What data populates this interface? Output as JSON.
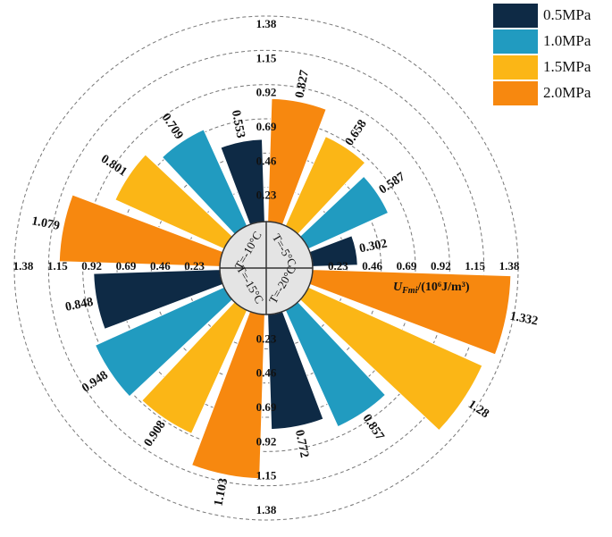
{
  "chart_data": {
    "type": "polar_bar",
    "categories": [
      "T=-5°C",
      "T=-10°C",
      "T=-15°C",
      "T=-20°C"
    ],
    "series": [
      {
        "name": "0.5MPa",
        "color": "#0e2a45",
        "values": [
          0.302,
          0.553,
          0.848,
          0.772
        ]
      },
      {
        "name": "1.0MPa",
        "color": "#219bc0",
        "values": [
          0.587,
          0.709,
          0.948,
          0.857
        ]
      },
      {
        "name": "1.5MPa",
        "color": "#fbb616",
        "values": [
          0.658,
          0.801,
          0.908,
          1.28
        ]
      },
      {
        "name": "2.0MPa",
        "color": "#f7880f",
        "values": [
          0.827,
          1.079,
          1.103,
          1.332
        ]
      }
    ],
    "ylim": [
      0,
      1.38
    ],
    "yticks": [
      0.23,
      0.46,
      0.69,
      0.92,
      1.15,
      1.38
    ],
    "y_label": {
      "symbol": "U",
      "subscript": "Fmi",
      "unit": "/(10⁶J/m³)"
    },
    "grid": true,
    "legend": "upper right"
  }
}
